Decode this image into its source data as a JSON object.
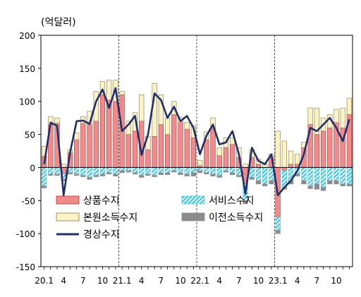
{
  "chart_data": {
    "type": "bar",
    "unit_label": "(억달러)",
    "ylim": [
      -150,
      200
    ],
    "yticks": [
      -150,
      -100,
      -50,
      0,
      50,
      100,
      150,
      200
    ],
    "xtick_labels": [
      "20.1",
      "4",
      "7",
      "10",
      "21.1",
      "4",
      "7",
      "10",
      "22.1",
      "4",
      "7",
      "10",
      "23.1",
      "4",
      "7",
      "10"
    ],
    "year_separators_after_month_index": [
      11,
      23,
      35
    ],
    "legend": {
      "goods": "상품수지",
      "services": "서비스수지",
      "primary": "본원소득수지",
      "secondary": "이전소득수지",
      "current": "경상수지"
    },
    "colors": {
      "goods": "#f08b8b",
      "goods_edge": "#b03030",
      "services": "#3fc6ea",
      "primary": "#fbf2c8",
      "primary_edge": "#8a7a40",
      "secondary": "#8c8c8c",
      "current": "#1f2f6b"
    },
    "months": [
      "2020.01",
      "2020.02",
      "2020.03",
      "2020.04",
      "2020.05",
      "2020.06",
      "2020.07",
      "2020.08",
      "2020.09",
      "2020.10",
      "2020.11",
      "2020.12",
      "2021.01",
      "2021.02",
      "2021.03",
      "2021.04",
      "2021.05",
      "2021.06",
      "2021.07",
      "2021.08",
      "2021.09",
      "2021.10",
      "2021.11",
      "2021.12",
      "2022.01",
      "2022.02",
      "2022.03",
      "2022.04",
      "2022.05",
      "2022.06",
      "2022.07",
      "2022.08",
      "2022.09",
      "2022.10",
      "2022.11",
      "2022.12",
      "2023.01",
      "2023.02",
      "2023.03",
      "2023.04",
      "2023.05",
      "2023.06",
      "2023.07",
      "2023.08",
      "2023.09",
      "2023.10",
      "2023.11",
      "2023.12"
    ],
    "series": [
      {
        "name": "상품수지",
        "key": "goods",
        "values": [
          17,
          65,
          67,
          -10,
          22,
          42,
          67,
          65,
          70,
          110,
          102,
          100,
          110,
          50,
          55,
          70,
          27,
          47,
          65,
          50,
          80,
          68,
          58,
          45,
          3,
          42,
          60,
          18,
          30,
          35,
          15,
          -25,
          15,
          5,
          0,
          15,
          -75,
          -5,
          5,
          5,
          30,
          65,
          50,
          55,
          60,
          68,
          60,
          80
        ]
      },
      {
        "name": "서비스수지",
        "key": "services",
        "values": [
          -28,
          -10,
          -10,
          -8,
          -8,
          -10,
          -12,
          -15,
          -12,
          -10,
          -8,
          -10,
          -5,
          -5,
          -8,
          -12,
          -10,
          -12,
          -8,
          -8,
          -5,
          -8,
          -10,
          -8,
          -5,
          -8,
          -10,
          -12,
          -5,
          -8,
          -12,
          -25,
          -15,
          -20,
          -25,
          -20,
          -20,
          -25,
          -20,
          -10,
          -20,
          -28,
          -25,
          -30,
          -20,
          -20,
          -25,
          -25
        ]
      },
      {
        "name": "본원소득수지",
        "key": "primary",
        "values": [
          15,
          12,
          8,
          5,
          5,
          10,
          10,
          20,
          45,
          20,
          30,
          32,
          5,
          20,
          28,
          40,
          20,
          80,
          45,
          25,
          20,
          8,
          10,
          18,
          8,
          12,
          15,
          12,
          15,
          10,
          15,
          5,
          12,
          8,
          5,
          5,
          55,
          40,
          20,
          15,
          8,
          25,
          40,
          20,
          20,
          20,
          30,
          25
        ]
      },
      {
        "name": "이전소득수지",
        "key": "secondary",
        "values": [
          -3,
          -2,
          -2,
          -2,
          -2,
          -2,
          -2,
          -3,
          -2,
          -3,
          -2,
          -3,
          -3,
          -2,
          -2,
          -3,
          -2,
          -2,
          -3,
          -3,
          -2,
          -3,
          -3,
          -5,
          -3,
          -2,
          -3,
          -3,
          -2,
          -3,
          -2,
          -5,
          -3,
          -5,
          -3,
          -5,
          -5,
          -3,
          -5,
          -3,
          -5,
          -4,
          -8,
          -5,
          -5,
          -5,
          -3,
          -3
        ]
      },
      {
        "name": "경상수지",
        "key": "current",
        "values": [
          5,
          68,
          63,
          -42,
          23,
          70,
          71,
          66,
          100,
          118,
          90,
          120,
          55,
          65,
          78,
          19,
          50,
          112,
          102,
          75,
          92,
          70,
          78,
          60,
          20,
          48,
          65,
          35,
          38,
          55,
          20,
          -40,
          30,
          10,
          5,
          20,
          -42,
          -30,
          -20,
          -5,
          20,
          60,
          55,
          65,
          75,
          60,
          40,
          73
        ]
      }
    ]
  }
}
